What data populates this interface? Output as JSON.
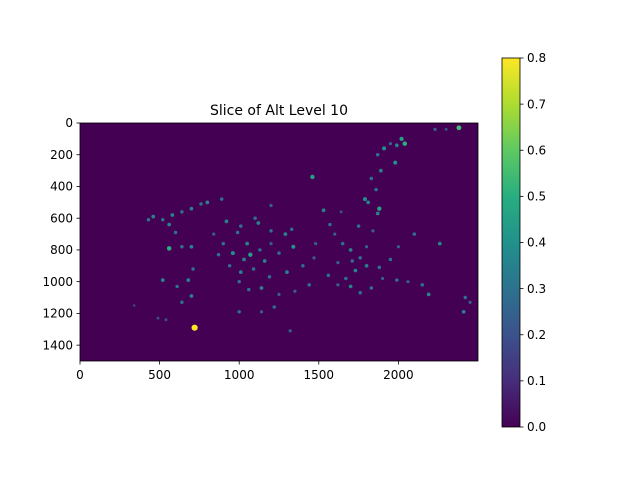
{
  "chart_data": {
    "type": "heatmap",
    "title": "Slice of Alt Level 10",
    "xlabel": "",
    "ylabel": "",
    "xlim": [
      0,
      2500
    ],
    "ylim": [
      1500,
      0
    ],
    "xticks": [
      0,
      500,
      1000,
      1500,
      2000
    ],
    "yticks": [
      0,
      200,
      400,
      600,
      800,
      1000,
      1200,
      1400
    ],
    "colormap": "viridis",
    "background_value": 0.0,
    "colorbar": {
      "vmin": 0.0,
      "vmax": 0.8,
      "ticks": [
        "0.0",
        "0.1",
        "0.2",
        "0.3",
        "0.4",
        "0.5",
        "0.6",
        "0.7",
        "0.8"
      ]
    },
    "points": [
      {
        "x": 2380,
        "y": 30,
        "v": 0.55
      },
      {
        "x": 2230,
        "y": 40,
        "v": 0.25
      },
      {
        "x": 2020,
        "y": 100,
        "v": 0.45
      },
      {
        "x": 2040,
        "y": 130,
        "v": 0.5
      },
      {
        "x": 1990,
        "y": 140,
        "v": 0.35
      },
      {
        "x": 1910,
        "y": 160,
        "v": 0.4
      },
      {
        "x": 1870,
        "y": 200,
        "v": 0.3
      },
      {
        "x": 1980,
        "y": 250,
        "v": 0.4
      },
      {
        "x": 1890,
        "y": 300,
        "v": 0.35
      },
      {
        "x": 1830,
        "y": 350,
        "v": 0.3
      },
      {
        "x": 1460,
        "y": 340,
        "v": 0.45
      },
      {
        "x": 1860,
        "y": 420,
        "v": 0.3
      },
      {
        "x": 1790,
        "y": 480,
        "v": 0.4
      },
      {
        "x": 1810,
        "y": 500,
        "v": 0.35
      },
      {
        "x": 1880,
        "y": 540,
        "v": 0.45
      },
      {
        "x": 1870,
        "y": 570,
        "v": 0.35
      },
      {
        "x": 1530,
        "y": 550,
        "v": 0.35
      },
      {
        "x": 1570,
        "y": 640,
        "v": 0.3
      },
      {
        "x": 1600,
        "y": 700,
        "v": 0.25
      },
      {
        "x": 1750,
        "y": 650,
        "v": 0.3
      },
      {
        "x": 1840,
        "y": 680,
        "v": 0.25
      },
      {
        "x": 2100,
        "y": 700,
        "v": 0.3
      },
      {
        "x": 2260,
        "y": 760,
        "v": 0.35
      },
      {
        "x": 1480,
        "y": 760,
        "v": 0.25
      },
      {
        "x": 1650,
        "y": 760,
        "v": 0.3
      },
      {
        "x": 1700,
        "y": 800,
        "v": 0.35
      },
      {
        "x": 1760,
        "y": 850,
        "v": 0.3
      },
      {
        "x": 1800,
        "y": 900,
        "v": 0.35
      },
      {
        "x": 1880,
        "y": 910,
        "v": 0.3
      },
      {
        "x": 1730,
        "y": 930,
        "v": 0.35
      },
      {
        "x": 1670,
        "y": 980,
        "v": 0.3
      },
      {
        "x": 1700,
        "y": 1030,
        "v": 0.35
      },
      {
        "x": 1760,
        "y": 1070,
        "v": 0.3
      },
      {
        "x": 1620,
        "y": 1020,
        "v": 0.25
      },
      {
        "x": 1990,
        "y": 990,
        "v": 0.3
      },
      {
        "x": 2060,
        "y": 1000,
        "v": 0.25
      },
      {
        "x": 2150,
        "y": 1020,
        "v": 0.3
      },
      {
        "x": 2190,
        "y": 1080,
        "v": 0.35
      },
      {
        "x": 2420,
        "y": 1100,
        "v": 0.3
      },
      {
        "x": 2450,
        "y": 1130,
        "v": 0.25
      },
      {
        "x": 2410,
        "y": 1190,
        "v": 0.35
      },
      {
        "x": 1440,
        "y": 1020,
        "v": 0.3
      },
      {
        "x": 1350,
        "y": 1060,
        "v": 0.25
      },
      {
        "x": 1400,
        "y": 900,
        "v": 0.3
      },
      {
        "x": 1300,
        "y": 940,
        "v": 0.35
      },
      {
        "x": 1340,
        "y": 780,
        "v": 0.4
      },
      {
        "x": 1290,
        "y": 700,
        "v": 0.35
      },
      {
        "x": 1330,
        "y": 670,
        "v": 0.3
      },
      {
        "x": 1200,
        "y": 680,
        "v": 0.3
      },
      {
        "x": 1120,
        "y": 630,
        "v": 0.35
      },
      {
        "x": 1100,
        "y": 600,
        "v": 0.3
      },
      {
        "x": 1010,
        "y": 650,
        "v": 0.3
      },
      {
        "x": 920,
        "y": 620,
        "v": 0.35
      },
      {
        "x": 990,
        "y": 690,
        "v": 0.3
      },
      {
        "x": 1050,
        "y": 760,
        "v": 0.35
      },
      {
        "x": 960,
        "y": 820,
        "v": 0.4
      },
      {
        "x": 1030,
        "y": 860,
        "v": 0.35
      },
      {
        "x": 1070,
        "y": 830,
        "v": 0.45
      },
      {
        "x": 1130,
        "y": 800,
        "v": 0.3
      },
      {
        "x": 1160,
        "y": 870,
        "v": 0.35
      },
      {
        "x": 1090,
        "y": 920,
        "v": 0.3
      },
      {
        "x": 1010,
        "y": 940,
        "v": 0.35
      },
      {
        "x": 1190,
        "y": 970,
        "v": 0.3
      },
      {
        "x": 1140,
        "y": 1040,
        "v": 0.35
      },
      {
        "x": 1060,
        "y": 1050,
        "v": 0.3
      },
      {
        "x": 1000,
        "y": 1000,
        "v": 0.3
      },
      {
        "x": 1250,
        "y": 1080,
        "v": 0.25
      },
      {
        "x": 1220,
        "y": 1160,
        "v": 0.3
      },
      {
        "x": 1140,
        "y": 1190,
        "v": 0.25
      },
      {
        "x": 1000,
        "y": 1190,
        "v": 0.3
      },
      {
        "x": 1320,
        "y": 1310,
        "v": 0.25
      },
      {
        "x": 870,
        "y": 830,
        "v": 0.3
      },
      {
        "x": 900,
        "y": 760,
        "v": 0.3
      },
      {
        "x": 840,
        "y": 700,
        "v": 0.25
      },
      {
        "x": 700,
        "y": 780,
        "v": 0.35
      },
      {
        "x": 640,
        "y": 780,
        "v": 0.3
      },
      {
        "x": 560,
        "y": 790,
        "v": 0.5
      },
      {
        "x": 600,
        "y": 690,
        "v": 0.3
      },
      {
        "x": 560,
        "y": 640,
        "v": 0.35
      },
      {
        "x": 520,
        "y": 610,
        "v": 0.3
      },
      {
        "x": 580,
        "y": 580,
        "v": 0.35
      },
      {
        "x": 640,
        "y": 560,
        "v": 0.3
      },
      {
        "x": 700,
        "y": 540,
        "v": 0.35
      },
      {
        "x": 760,
        "y": 510,
        "v": 0.3
      },
      {
        "x": 800,
        "y": 500,
        "v": 0.35
      },
      {
        "x": 890,
        "y": 480,
        "v": 0.3
      },
      {
        "x": 460,
        "y": 590,
        "v": 0.35
      },
      {
        "x": 430,
        "y": 610,
        "v": 0.3
      },
      {
        "x": 710,
        "y": 920,
        "v": 0.3
      },
      {
        "x": 680,
        "y": 990,
        "v": 0.35
      },
      {
        "x": 610,
        "y": 1030,
        "v": 0.3
      },
      {
        "x": 520,
        "y": 990,
        "v": 0.35
      },
      {
        "x": 640,
        "y": 1130,
        "v": 0.3
      },
      {
        "x": 700,
        "y": 1090,
        "v": 0.35
      },
      {
        "x": 490,
        "y": 1230,
        "v": 0.2
      },
      {
        "x": 540,
        "y": 1240,
        "v": 0.2
      },
      {
        "x": 720,
        "y": 1290,
        "v": 0.8
      },
      {
        "x": 340,
        "y": 1150,
        "v": 0.15
      },
      {
        "x": 1200,
        "y": 520,
        "v": 0.25
      },
      {
        "x": 1710,
        "y": 870,
        "v": 0.3
      },
      {
        "x": 1620,
        "y": 880,
        "v": 0.25
      },
      {
        "x": 1560,
        "y": 960,
        "v": 0.3
      },
      {
        "x": 1800,
        "y": 780,
        "v": 0.25
      },
      {
        "x": 1950,
        "y": 860,
        "v": 0.3
      },
      {
        "x": 2000,
        "y": 780,
        "v": 0.25
      },
      {
        "x": 1900,
        "y": 980,
        "v": 0.25
      },
      {
        "x": 1830,
        "y": 1040,
        "v": 0.3
      },
      {
        "x": 1470,
        "y": 850,
        "v": 0.25
      },
      {
        "x": 1250,
        "y": 820,
        "v": 0.3
      },
      {
        "x": 940,
        "y": 900,
        "v": 0.3
      },
      {
        "x": 1200,
        "y": 760,
        "v": 0.25
      },
      {
        "x": 2300,
        "y": 40,
        "v": 0.2
      },
      {
        "x": 1950,
        "y": 130,
        "v": 0.25
      },
      {
        "x": 1640,
        "y": 560,
        "v": 0.2
      }
    ]
  }
}
